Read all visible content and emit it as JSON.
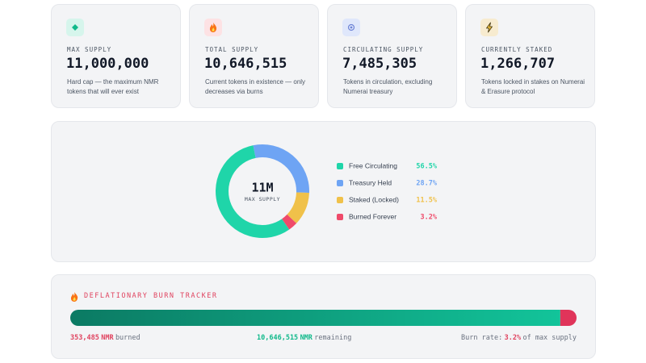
{
  "cards": [
    {
      "label": "MAX SUPPLY",
      "value": "11,000,000",
      "description": "Hard cap — the maximum NMR tokens that will ever exist"
    },
    {
      "label": "TOTAL SUPPLY",
      "value": "10,646,515",
      "description": "Current tokens in existence — only decreases via burns"
    },
    {
      "label": "CIRCULATING SUPPLY",
      "value": "7,485,305",
      "description": "Tokens in circulation, excluding Numerai treasury"
    },
    {
      "label": "CURRENTLY STAKED",
      "value": "1,266,707",
      "description": "Tokens locked in stakes on Numerai & Erasure protocol"
    }
  ],
  "donut": {
    "center_value": "11M",
    "center_label": "MAX SUPPLY",
    "segments": [
      {
        "name": "Free Circulating",
        "color": "#1fd5a9",
        "value": 56.5,
        "label": "56.5%"
      },
      {
        "name": "Treasury Held",
        "color": "#6ea4f4",
        "value": 28.7,
        "label": "28.7%"
      },
      {
        "name": "Staked (Locked)",
        "color": "#f0c14a",
        "value": 11.5,
        "label": "11.5%"
      },
      {
        "name": "Burned Forever",
        "color": "#ef4a6a",
        "value": 3.2,
        "label": "3.2%"
      }
    ]
  },
  "burn_tracker": {
    "title": "DEFLATIONARY BURN TRACKER",
    "burned": {
      "value": 353485,
      "label": "353,485"
    },
    "burned_unit": "NMR",
    "burned_suffix": "burned",
    "remaining": {
      "value": 10646515,
      "label": "10,646,515"
    },
    "remaining_unit": "NMR",
    "remaining_suffix": "remaining",
    "rate_prefix": "Burn rate:",
    "rate": "3.2%",
    "rate_suffix": "of max supply"
  }
}
